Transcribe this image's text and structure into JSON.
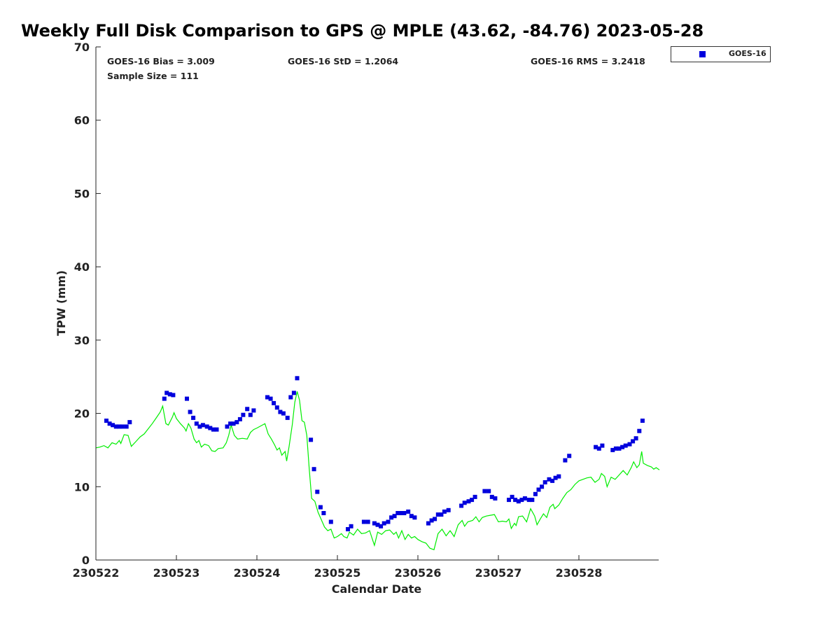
{
  "chart_data": {
    "type": "scatter",
    "title": "Weekly Full Disk Comparison to GPS @ MPLE (43.62, -84.76) 2023-05-28",
    "xlabel": "Calendar Date",
    "ylabel": "TPW (mm)",
    "xlim": [
      230522,
      230529.0
    ],
    "ylim": [
      0,
      70
    ],
    "x_ticks": [
      "230522",
      "230523",
      "230524",
      "230525",
      "230526",
      "230527",
      "230528"
    ],
    "y_ticks": [
      "0",
      "10",
      "20",
      "30",
      "40",
      "50",
      "60",
      "70"
    ],
    "grid": false,
    "legend_placement": "top-right outside",
    "stats": {
      "bias": "GOES-16 Bias = 3.009",
      "std": "GOES-16 StD = 1.2064",
      "rms": "GOES-16 RMS = 3.2418",
      "sample": "Sample Size = 111"
    },
    "series": [
      {
        "name": "GOES-16",
        "kind": "scatter",
        "color": "#0000dd",
        "points": [
          [
            230522.13,
            19.0
          ],
          [
            230522.17,
            18.6
          ],
          [
            230522.21,
            18.4
          ],
          [
            230522.25,
            18.2
          ],
          [
            230522.29,
            18.2
          ],
          [
            230522.33,
            18.2
          ],
          [
            230522.38,
            18.2
          ],
          [
            230522.42,
            18.8
          ],
          [
            230522.85,
            22.0
          ],
          [
            230522.88,
            22.8
          ],
          [
            230522.92,
            22.6
          ],
          [
            230522.96,
            22.5
          ],
          [
            230523.13,
            22.0
          ],
          [
            230523.17,
            20.2
          ],
          [
            230523.21,
            19.4
          ],
          [
            230523.25,
            18.6
          ],
          [
            230523.29,
            18.2
          ],
          [
            230523.33,
            18.4
          ],
          [
            230523.38,
            18.2
          ],
          [
            230523.42,
            18.0
          ],
          [
            230523.46,
            17.8
          ],
          [
            230523.5,
            17.8
          ],
          [
            230523.63,
            18.2
          ],
          [
            230523.67,
            18.6
          ],
          [
            230523.71,
            18.6
          ],
          [
            230523.75,
            18.8
          ],
          [
            230523.79,
            19.2
          ],
          [
            230523.83,
            19.8
          ],
          [
            230523.88,
            20.6
          ],
          [
            230523.92,
            19.8
          ],
          [
            230523.96,
            20.4
          ],
          [
            230524.13,
            22.2
          ],
          [
            230524.17,
            22.0
          ],
          [
            230524.21,
            21.4
          ],
          [
            230524.25,
            20.8
          ],
          [
            230524.29,
            20.2
          ],
          [
            230524.33,
            20.0
          ],
          [
            230524.38,
            19.4
          ],
          [
            230524.42,
            22.2
          ],
          [
            230524.46,
            22.8
          ],
          [
            230524.5,
            24.8
          ],
          [
            230524.67,
            16.4
          ],
          [
            230524.71,
            12.4
          ],
          [
            230524.75,
            9.3
          ],
          [
            230524.79,
            7.2
          ],
          [
            230524.83,
            6.4
          ],
          [
            230524.92,
            5.2
          ],
          [
            230525.13,
            4.2
          ],
          [
            230525.17,
            4.6
          ],
          [
            230525.33,
            5.2
          ],
          [
            230525.38,
            5.2
          ],
          [
            230525.46,
            5.0
          ],
          [
            230525.5,
            4.8
          ],
          [
            230525.54,
            4.6
          ],
          [
            230525.58,
            5.0
          ],
          [
            230525.63,
            5.2
          ],
          [
            230525.67,
            5.8
          ],
          [
            230525.71,
            6.0
          ],
          [
            230525.75,
            6.4
          ],
          [
            230525.79,
            6.4
          ],
          [
            230525.83,
            6.4
          ],
          [
            230525.88,
            6.6
          ],
          [
            230525.92,
            6.0
          ],
          [
            230525.96,
            5.8
          ],
          [
            230526.13,
            5.0
          ],
          [
            230526.17,
            5.4
          ],
          [
            230526.21,
            5.6
          ],
          [
            230526.25,
            6.2
          ],
          [
            230526.29,
            6.2
          ],
          [
            230526.33,
            6.6
          ],
          [
            230526.38,
            6.8
          ],
          [
            230526.54,
            7.4
          ],
          [
            230526.58,
            7.8
          ],
          [
            230526.63,
            8.0
          ],
          [
            230526.67,
            8.2
          ],
          [
            230526.71,
            8.6
          ],
          [
            230526.83,
            9.4
          ],
          [
            230526.88,
            9.4
          ],
          [
            230526.92,
            8.6
          ],
          [
            230526.96,
            8.4
          ],
          [
            230527.13,
            8.2
          ],
          [
            230527.17,
            8.6
          ],
          [
            230527.21,
            8.2
          ],
          [
            230527.25,
            8.0
          ],
          [
            230527.29,
            8.2
          ],
          [
            230527.33,
            8.4
          ],
          [
            230527.38,
            8.2
          ],
          [
            230527.42,
            8.2
          ],
          [
            230527.46,
            9.0
          ],
          [
            230527.5,
            9.6
          ],
          [
            230527.54,
            10.0
          ],
          [
            230527.58,
            10.6
          ],
          [
            230527.63,
            11.0
          ],
          [
            230527.67,
            10.8
          ],
          [
            230527.71,
            11.2
          ],
          [
            230527.75,
            11.4
          ],
          [
            230527.83,
            13.6
          ],
          [
            230527.88,
            14.2
          ],
          [
            230528.21,
            15.4
          ],
          [
            230528.25,
            15.2
          ],
          [
            230528.29,
            15.6
          ],
          [
            230528.42,
            15.0
          ],
          [
            230528.46,
            15.2
          ],
          [
            230528.5,
            15.2
          ],
          [
            230528.54,
            15.4
          ],
          [
            230528.58,
            15.6
          ],
          [
            230528.63,
            15.8
          ],
          [
            230528.67,
            16.2
          ],
          [
            230528.71,
            16.6
          ],
          [
            230528.75,
            17.6
          ],
          [
            230528.79,
            19.0
          ]
        ]
      },
      {
        "kind": "line",
        "color": "#00ee00",
        "points": [
          [
            230522.0,
            15.3
          ],
          [
            230522.05,
            15.4
          ],
          [
            230522.1,
            15.6
          ],
          [
            230522.15,
            15.3
          ],
          [
            230522.2,
            16.0
          ],
          [
            230522.25,
            15.8
          ],
          [
            230522.29,
            16.3
          ],
          [
            230522.31,
            15.9
          ],
          [
            230522.35,
            17.1
          ],
          [
            230522.4,
            17.0
          ],
          [
            230522.44,
            15.5
          ],
          [
            230522.5,
            16.2
          ],
          [
            230522.55,
            16.8
          ],
          [
            230522.6,
            17.2
          ],
          [
            230522.65,
            17.9
          ],
          [
            230522.7,
            18.6
          ],
          [
            230522.75,
            19.4
          ],
          [
            230522.8,
            20.2
          ],
          [
            230522.83,
            21.0
          ],
          [
            230522.87,
            18.6
          ],
          [
            230522.9,
            18.4
          ],
          [
            230522.95,
            19.5
          ],
          [
            230522.97,
            20.1
          ],
          [
            230523.0,
            19.3
          ],
          [
            230523.05,
            18.6
          ],
          [
            230523.1,
            18.0
          ],
          [
            230523.12,
            17.6
          ],
          [
            230523.15,
            18.6
          ],
          [
            230523.18,
            18.0
          ],
          [
            230523.22,
            16.5
          ],
          [
            230523.25,
            16.0
          ],
          [
            230523.28,
            16.3
          ],
          [
            230523.31,
            15.4
          ],
          [
            230523.35,
            15.8
          ],
          [
            230523.4,
            15.6
          ],
          [
            230523.44,
            14.9
          ],
          [
            230523.48,
            14.8
          ],
          [
            230523.52,
            15.2
          ],
          [
            230523.58,
            15.3
          ],
          [
            230523.62,
            16.0
          ],
          [
            230523.65,
            17.0
          ],
          [
            230523.68,
            18.4
          ],
          [
            230523.72,
            17.0
          ],
          [
            230523.76,
            16.5
          ],
          [
            230523.82,
            16.6
          ],
          [
            230523.88,
            16.5
          ],
          [
            230523.92,
            17.4
          ],
          [
            230523.96,
            17.8
          ],
          [
            230524.0,
            18.0
          ],
          [
            230524.05,
            18.3
          ],
          [
            230524.1,
            18.6
          ],
          [
            230524.14,
            17.2
          ],
          [
            230524.18,
            16.5
          ],
          [
            230524.22,
            15.7
          ],
          [
            230524.25,
            15.0
          ],
          [
            230524.28,
            15.3
          ],
          [
            230524.31,
            14.3
          ],
          [
            230524.35,
            14.8
          ],
          [
            230524.37,
            13.5
          ],
          [
            230524.4,
            15.5
          ],
          [
            230524.44,
            18.5
          ],
          [
            230524.47,
            21.5
          ],
          [
            230524.5,
            23.0
          ],
          [
            230524.53,
            21.8
          ],
          [
            230524.56,
            19.0
          ],
          [
            230524.59,
            18.8
          ],
          [
            230524.62,
            17.0
          ],
          [
            230524.65,
            12.5
          ],
          [
            230524.68,
            8.4
          ],
          [
            230524.72,
            8.0
          ],
          [
            230524.76,
            6.5
          ],
          [
            230524.8,
            5.5
          ],
          [
            230524.84,
            4.5
          ],
          [
            230524.88,
            4.0
          ],
          [
            230524.92,
            4.2
          ],
          [
            230524.96,
            3.0
          ],
          [
            230525.0,
            3.2
          ],
          [
            230525.05,
            3.6
          ],
          [
            230525.08,
            3.2
          ],
          [
            230525.12,
            3.0
          ],
          [
            230525.15,
            3.8
          ],
          [
            230525.2,
            3.4
          ],
          [
            230525.25,
            4.2
          ],
          [
            230525.3,
            3.6
          ],
          [
            230525.35,
            3.7
          ],
          [
            230525.4,
            4.0
          ],
          [
            230525.43,
            3.0
          ],
          [
            230525.46,
            2.0
          ],
          [
            230525.5,
            3.8
          ],
          [
            230525.55,
            3.5
          ],
          [
            230525.6,
            4.0
          ],
          [
            230525.65,
            4.1
          ],
          [
            230525.7,
            3.5
          ],
          [
            230525.73,
            3.8
          ],
          [
            230525.76,
            3.0
          ],
          [
            230525.8,
            4.0
          ],
          [
            230525.84,
            2.8
          ],
          [
            230525.88,
            3.5
          ],
          [
            230525.92,
            3.0
          ],
          [
            230525.96,
            3.2
          ],
          [
            230526.0,
            2.8
          ],
          [
            230526.05,
            2.5
          ],
          [
            230526.1,
            2.3
          ],
          [
            230526.15,
            1.6
          ],
          [
            230526.2,
            1.4
          ],
          [
            230526.25,
            3.6
          ],
          [
            230526.3,
            4.2
          ],
          [
            230526.35,
            3.3
          ],
          [
            230526.4,
            4.0
          ],
          [
            230526.45,
            3.2
          ],
          [
            230526.5,
            4.8
          ],
          [
            230526.55,
            5.4
          ],
          [
            230526.58,
            4.6
          ],
          [
            230526.62,
            5.2
          ],
          [
            230526.68,
            5.4
          ],
          [
            230526.72,
            5.9
          ],
          [
            230526.76,
            5.2
          ],
          [
            230526.8,
            5.8
          ],
          [
            230526.85,
            6.0
          ],
          [
            230526.9,
            6.1
          ],
          [
            230526.95,
            6.2
          ],
          [
            230527.0,
            5.2
          ],
          [
            230527.05,
            5.3
          ],
          [
            230527.1,
            5.2
          ],
          [
            230527.13,
            5.6
          ],
          [
            230527.16,
            4.3
          ],
          [
            230527.2,
            5.0
          ],
          [
            230527.22,
            4.7
          ],
          [
            230527.25,
            5.9
          ],
          [
            230527.3,
            6.0
          ],
          [
            230527.35,
            5.2
          ],
          [
            230527.4,
            7.0
          ],
          [
            230527.45,
            6.0
          ],
          [
            230527.48,
            4.8
          ],
          [
            230527.52,
            5.6
          ],
          [
            230527.56,
            6.3
          ],
          [
            230527.6,
            5.8
          ],
          [
            230527.64,
            7.2
          ],
          [
            230527.68,
            7.6
          ],
          [
            230527.7,
            7.0
          ],
          [
            230527.75,
            7.5
          ],
          [
            230527.8,
            8.4
          ],
          [
            230527.85,
            9.2
          ],
          [
            230527.9,
            9.6
          ],
          [
            230527.95,
            10.3
          ],
          [
            230528.0,
            10.8
          ],
          [
            230528.05,
            11.0
          ],
          [
            230528.1,
            11.2
          ],
          [
            230528.15,
            11.3
          ],
          [
            230528.2,
            10.6
          ],
          [
            230528.25,
            11.0
          ],
          [
            230528.28,
            11.8
          ],
          [
            230528.32,
            11.4
          ],
          [
            230528.35,
            10.0
          ],
          [
            230528.4,
            11.3
          ],
          [
            230528.45,
            11.0
          ],
          [
            230528.5,
            11.6
          ],
          [
            230528.55,
            12.2
          ],
          [
            230528.6,
            11.6
          ],
          [
            230528.65,
            12.6
          ],
          [
            230528.68,
            13.4
          ],
          [
            230528.72,
            12.6
          ],
          [
            230528.75,
            13.0
          ],
          [
            230528.78,
            14.8
          ],
          [
            230528.8,
            13.2
          ],
          [
            230528.85,
            12.9
          ],
          [
            230528.9,
            12.7
          ],
          [
            230528.93,
            12.4
          ],
          [
            230528.96,
            12.6
          ],
          [
            230529.0,
            12.3
          ]
        ]
      }
    ]
  },
  "legend": {
    "label": "GOES-16"
  }
}
